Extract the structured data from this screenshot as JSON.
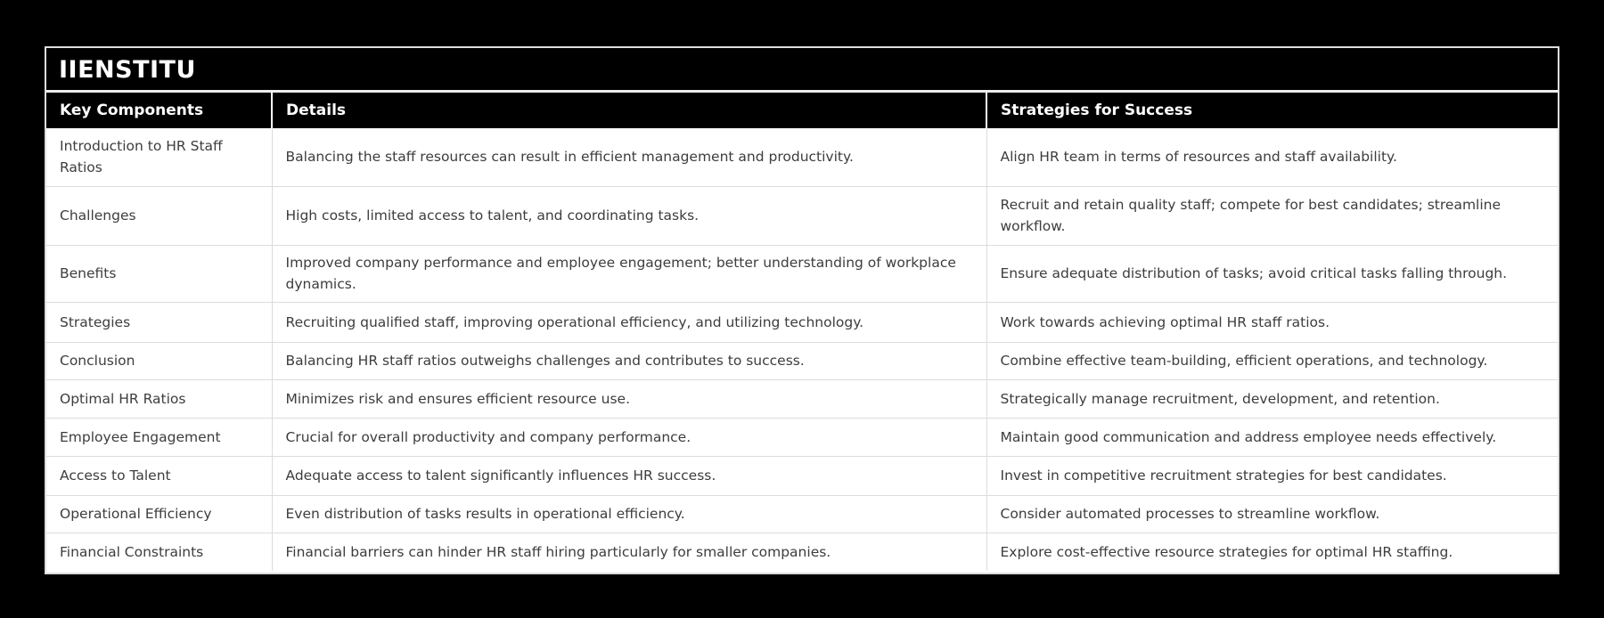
{
  "card": {
    "title": "IIENSTITU"
  },
  "colors": {
    "page_background": "#000000",
    "header_background": "#000000",
    "header_text": "#ffffff",
    "body_background": "#ffffff",
    "body_text": "#3d3d3d",
    "divider": "#dcdcdc"
  },
  "table": {
    "columns": [
      "Key Components",
      "Details",
      "Strategies for Success"
    ],
    "rows": [
      {
        "component": "Introduction to HR Staff Ratios",
        "details": "Balancing the staff resources can result in efficient management and productivity.",
        "strategy": "Align HR team in terms of resources and staff availability."
      },
      {
        "component": "Challenges",
        "details": "High costs, limited access to talent, and coordinating tasks.",
        "strategy": "Recruit and retain quality staff; compete for best candidates; streamline workflow."
      },
      {
        "component": "Benefits",
        "details": "Improved company performance and employee engagement; better understanding of workplace dynamics.",
        "strategy": "Ensure adequate distribution of tasks; avoid critical tasks falling through."
      },
      {
        "component": "Strategies",
        "details": "Recruiting qualified staff, improving operational efficiency, and utilizing technology.",
        "strategy": "Work towards achieving optimal HR staff ratios."
      },
      {
        "component": "Conclusion",
        "details": "Balancing HR staff ratios outweighs challenges and contributes to success.",
        "strategy": "Combine effective team-building, efficient operations, and technology."
      },
      {
        "component": "Optimal HR Ratios",
        "details": "Minimizes risk and ensures efficient resource use.",
        "strategy": "Strategically manage recruitment, development, and retention."
      },
      {
        "component": "Employee Engagement",
        "details": "Crucial for overall productivity and company performance.",
        "strategy": "Maintain good communication and address employee needs effectively."
      },
      {
        "component": "Access to Talent",
        "details": "Adequate access to talent significantly influences HR success.",
        "strategy": "Invest in competitive recruitment strategies for best candidates."
      },
      {
        "component": "Operational Efficiency",
        "details": "Even distribution of tasks results in operational efficiency.",
        "strategy": "Consider automated processes to streamline workflow."
      },
      {
        "component": "Financial Constraints",
        "details": "Financial barriers can hinder HR staff hiring particularly for smaller companies.",
        "strategy": "Explore cost-effective resource strategies for optimal HR staffing."
      }
    ]
  }
}
